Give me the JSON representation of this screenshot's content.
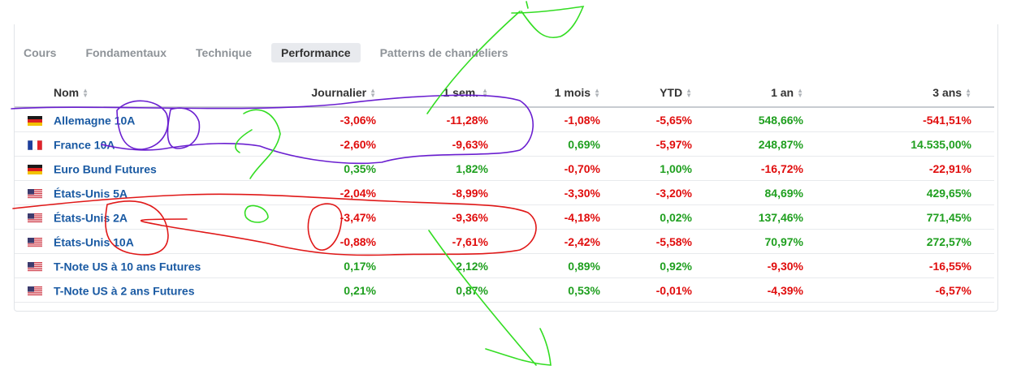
{
  "tabs": [
    {
      "label": "Cours",
      "active": false
    },
    {
      "label": "Fondamentaux",
      "active": false
    },
    {
      "label": "Technique",
      "active": false
    },
    {
      "label": "Performance",
      "active": true
    },
    {
      "label": "Patterns de chandeliers",
      "active": false
    }
  ],
  "table": {
    "headers": [
      "Nom",
      "Journalier",
      "1 sem.",
      "1 mois",
      "YTD",
      "1 an",
      "3 ans"
    ],
    "rows": [
      {
        "flag": "de",
        "name": "Allemagne 10A",
        "values": [
          "-3,06%",
          "-11,28%",
          "-1,08%",
          "-5,65%",
          "548,66%",
          "-541,51%"
        ]
      },
      {
        "flag": "fr",
        "name": "France 10A",
        "values": [
          "-2,60%",
          "-9,63%",
          "0,69%",
          "-5,97%",
          "248,87%",
          "14.535,00%"
        ]
      },
      {
        "flag": "de",
        "name": "Euro Bund Futures",
        "values": [
          "0,35%",
          "1,82%",
          "-0,70%",
          "1,00%",
          "-16,72%",
          "-22,91%"
        ]
      },
      {
        "flag": "us",
        "name": "États-Unis 5A",
        "values": [
          "-2,04%",
          "-8,99%",
          "-3,30%",
          "-3,20%",
          "84,69%",
          "429,65%"
        ]
      },
      {
        "flag": "us",
        "name": "États-Unis 2A",
        "values": [
          "-3,47%",
          "-9,36%",
          "-4,18%",
          "0,02%",
          "137,46%",
          "771,45%"
        ]
      },
      {
        "flag": "us",
        "name": "États-Unis 10A",
        "values": [
          "-0,88%",
          "-7,61%",
          "-2,42%",
          "-5,58%",
          "70,97%",
          "272,57%"
        ]
      },
      {
        "flag": "us",
        "name": "T-Note US à 10 ans Futures",
        "values": [
          "0,17%",
          "2,12%",
          "0,89%",
          "0,92%",
          "-9,30%",
          "-16,55%"
        ]
      },
      {
        "flag": "us",
        "name": "T-Note US à 2 ans Futures",
        "values": [
          "0,21%",
          "0,87%",
          "0,53%",
          "-0,01%",
          "-4,39%",
          "-6,57%"
        ]
      }
    ]
  },
  "colors": {
    "positive": "#1f9f1f",
    "negative": "#e00d0d",
    "link": "#1a5aa3",
    "annotation_purple": "#6a1fd0",
    "annotation_green": "#33dd22",
    "annotation_red": "#e01818"
  }
}
